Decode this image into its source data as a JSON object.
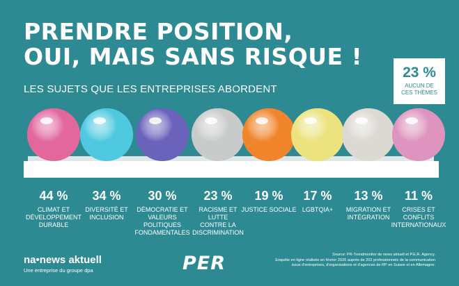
{
  "title_line1": "PRENDRE POSITION,",
  "title_line2": "OUI, MAIS SANS RISQUE !",
  "subtitle": "LES SUJETS QUE LES ENTREPRISES ABORDENT",
  "none_stat": {
    "value": "23 %",
    "label_line1": "AUCUN DE",
    "label_line2": "CES THÈMES"
  },
  "chart_data": {
    "type": "bar",
    "categories": [
      "CLIMAT ET DÉVELOPPEMENT DURABLE",
      "DIVERSITÉ ET INCLUSION",
      "DÉMOCRATIE ET VALEURS POLITIQUES FONDAMENTALES",
      "RACISME ET LUTTE CONTRE LA DISCRIMINATION",
      "JUSTICE SOCIALE",
      "LGBTQIA+",
      "MIGRATION ET INTÉGRATION",
      "CRISES ET CONFLITS INTERNATIONAUX"
    ],
    "values": [
      44,
      34,
      30,
      23,
      19,
      17,
      13,
      11
    ],
    "value_labels": [
      "44 %",
      "34 %",
      "30 %",
      "23 %",
      "19 %",
      "17 %",
      "13 %",
      "11 %"
    ],
    "colors": [
      "#E2679D",
      "#4FC9DF",
      "#6B62BC",
      "#C9CBCB",
      "#F0852B",
      "#ECE27E",
      "#DCD8D2",
      "#DE94BE"
    ]
  },
  "labels": [
    {
      "line1": "CLIMAT ET",
      "line2": "DÉVELOPPEMENT",
      "line3": "DURABLE",
      "line4": ""
    },
    {
      "line1": "DIVERSITÉ ET",
      "line2": "INCLUSION",
      "line3": "",
      "line4": ""
    },
    {
      "line1": "DÉMOCRATIE ET",
      "line2": "VALEURS",
      "line3": "POLITIQUES",
      "line4": "FONDAMENTALES"
    },
    {
      "line1": "RACISME ET",
      "line2": "LUTTE",
      "line3": "CONTRE LA",
      "line4": "DISCRIMINATION"
    },
    {
      "line1": "JUSTICE SOCIALE",
      "line2": "",
      "line3": "",
      "line4": ""
    },
    {
      "line1": "LGBTQIA+",
      "line2": "",
      "line3": "",
      "line4": ""
    },
    {
      "line1": "MIGRATION ET",
      "line2": "INTÉGRATION",
      "line3": "",
      "line4": ""
    },
    {
      "line1": "CRISES ET",
      "line2": "CONFLITS",
      "line3": "INTERNATIONAUX",
      "line4": ""
    }
  ],
  "footer": {
    "logo_na": "na•news aktuell",
    "logo_sub": "Une entreprise du groupe dpa",
    "logo_per": "PER",
    "source_line1": "Source: PR-Trendmonitor de news aktuell et P.E.R. Agency.",
    "source_line2": "Enquête en ligne réalisée en février 2026 auprès de 202 professionnels de la communication",
    "source_line3": "issus d'entreprises, d'organisations et d'agences de RP en Suisse et en Allemagne."
  },
  "colors": {
    "background": "#2E8A92",
    "text": "#FFFFFF"
  }
}
